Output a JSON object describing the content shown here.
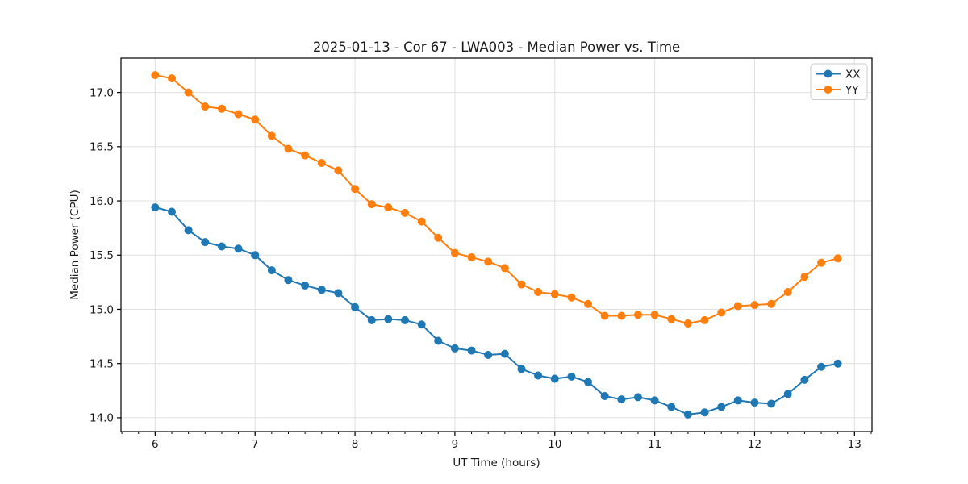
{
  "chart_data": {
    "type": "line",
    "title": "2025-01-13 - Cor 67 - LWA003 - Median Power vs. Time",
    "xlabel": "UT Time (hours)",
    "ylabel": "Median Power (CPU)",
    "xlim": [
      5.658,
      13.175
    ],
    "ylim": [
      13.873,
      17.317
    ],
    "xticks": [
      6,
      7,
      8,
      9,
      10,
      11,
      12,
      13
    ],
    "xtick_labels": [
      "6",
      "7",
      "8",
      "9",
      "10",
      "11",
      "12",
      "13"
    ],
    "yticks": [
      14.0,
      14.5,
      15.0,
      15.5,
      16.0,
      16.5,
      17.0
    ],
    "ytick_labels": [
      "14.0",
      "14.5",
      "15.0",
      "15.5",
      "16.0",
      "16.5",
      "17.0"
    ],
    "minor_xtick_step": 0.166667,
    "grid": true,
    "legend_position": "upper right",
    "x": [
      6.0,
      6.167,
      6.333,
      6.5,
      6.667,
      6.833,
      7.0,
      7.167,
      7.333,
      7.5,
      7.667,
      7.833,
      8.0,
      8.167,
      8.333,
      8.5,
      8.667,
      8.833,
      9.0,
      9.167,
      9.333,
      9.5,
      9.667,
      9.833,
      10.0,
      10.167,
      10.333,
      10.5,
      10.667,
      10.833,
      11.0,
      11.167,
      11.333,
      11.5,
      11.667,
      11.833,
      12.0,
      12.167,
      12.333,
      12.5,
      12.667,
      12.833
    ],
    "series": [
      {
        "name": "XX",
        "color": "#1f77b4",
        "values": [
          15.94,
          15.9,
          15.73,
          15.62,
          15.58,
          15.56,
          15.5,
          15.36,
          15.27,
          15.22,
          15.18,
          15.15,
          15.02,
          14.9,
          14.91,
          14.9,
          14.86,
          14.71,
          14.64,
          14.62,
          14.58,
          14.59,
          14.45,
          14.39,
          14.36,
          14.38,
          14.33,
          14.2,
          14.17,
          14.19,
          14.16,
          14.1,
          14.03,
          14.05,
          14.1,
          14.16,
          14.14,
          14.13,
          14.22,
          14.35,
          14.47,
          14.5
        ]
      },
      {
        "name": "YY",
        "color": "#ff7f0e",
        "values": [
          17.16,
          17.13,
          17.0,
          16.87,
          16.85,
          16.8,
          16.75,
          16.6,
          16.48,
          16.42,
          16.35,
          16.28,
          16.11,
          15.97,
          15.94,
          15.89,
          15.81,
          15.66,
          15.52,
          15.48,
          15.44,
          15.38,
          15.23,
          15.16,
          15.14,
          15.11,
          15.05,
          14.94,
          14.94,
          14.95,
          14.95,
          14.91,
          14.87,
          14.9,
          14.97,
          15.03,
          15.04,
          15.05,
          15.16,
          15.3,
          15.43,
          15.47
        ]
      }
    ]
  },
  "style": {
    "grid_color": "#e0e0e0",
    "spine_color": "#000000",
    "tick_color": "#000000",
    "legend_border_color": "#cccccc",
    "background": "#ffffff",
    "marker_radius": 5,
    "line_width": 2
  }
}
